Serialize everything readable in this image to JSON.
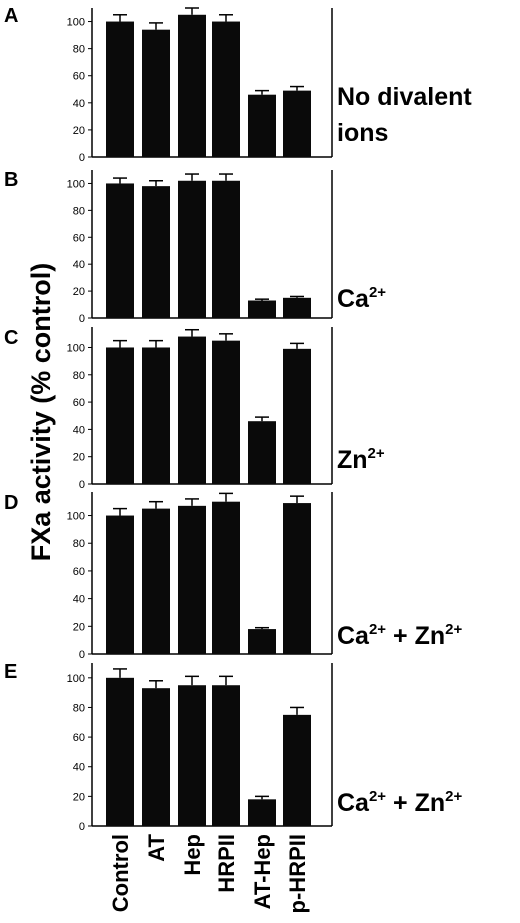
{
  "ylabel": "FXa activity (% control)",
  "categories": [
    "Control",
    "AT",
    "Hep",
    "HRPII",
    "AT-Hep",
    "p-HRPII"
  ],
  "chart_data": [
    {
      "type": "bar",
      "panel": "A",
      "condition": "No divalent ions",
      "condition_parts": [
        {
          "t": "No divalent"
        },
        {
          "t": "ions"
        }
      ],
      "categories": [
        "Control",
        "AT",
        "Hep",
        "HRPII",
        "AT-Hep",
        "p-HRPII"
      ],
      "values": [
        100,
        94,
        105,
        100,
        46,
        49
      ],
      "errors": [
        5,
        5,
        5,
        5,
        3,
        3
      ],
      "ylim": [
        0,
        110
      ],
      "yticks": [
        0,
        20,
        40,
        60,
        80,
        100
      ],
      "ylabel": "FXa activity (% control)"
    },
    {
      "type": "bar",
      "panel": "B",
      "condition": "Ca2+",
      "condition_parts": [
        {
          "t": "Ca"
        },
        {
          "sup": "2+"
        }
      ],
      "categories": [
        "Control",
        "AT",
        "Hep",
        "HRPII",
        "AT-Hep",
        "p-HRPII"
      ],
      "values": [
        100,
        98,
        102,
        102,
        13,
        15
      ],
      "errors": [
        4,
        4,
        5,
        5,
        1,
        1
      ],
      "ylim": [
        0,
        110
      ],
      "yticks": [
        0,
        20,
        40,
        60,
        80,
        100
      ],
      "ylabel": "FXa activity (% control)"
    },
    {
      "type": "bar",
      "panel": "C",
      "condition": "Zn2+",
      "condition_parts": [
        {
          "t": "Zn"
        },
        {
          "sup": "2+"
        }
      ],
      "categories": [
        "Control",
        "AT",
        "Hep",
        "HRPII",
        "AT-Hep",
        "p-HRPII"
      ],
      "values": [
        100,
        100,
        108,
        105,
        46,
        99
      ],
      "errors": [
        5,
        5,
        5,
        5,
        3,
        4
      ],
      "ylim": [
        0,
        115
      ],
      "yticks": [
        0,
        20,
        40,
        60,
        80,
        100
      ],
      "ylabel": "FXa activity (% control)"
    },
    {
      "type": "bar",
      "panel": "D",
      "condition": "Ca2+ + Zn2+",
      "condition_parts": [
        {
          "t": "Ca"
        },
        {
          "sup": "2+"
        },
        {
          "t": " + Zn"
        },
        {
          "sup": "2+"
        }
      ],
      "categories": [
        "Control",
        "AT",
        "Hep",
        "HRPII",
        "AT-Hep",
        "p-HRPII"
      ],
      "values": [
        100,
        105,
        107,
        110,
        18,
        109
      ],
      "errors": [
        5,
        5,
        5,
        6,
        1,
        5
      ],
      "ylim": [
        0,
        117
      ],
      "yticks": [
        0,
        20,
        40,
        60,
        80,
        100
      ],
      "ylabel": "FXa activity (% control)"
    },
    {
      "type": "bar",
      "panel": "E",
      "condition": "Ca2+ + Zn2+",
      "condition_parts": [
        {
          "t": "Ca"
        },
        {
          "sup": "2+"
        },
        {
          "t": " + Zn"
        },
        {
          "sup": "2+"
        }
      ],
      "categories": [
        "Control",
        "AT",
        "Hep",
        "HRPII",
        "AT-Hep",
        "p-HRPII"
      ],
      "values": [
        100,
        93,
        95,
        95,
        18,
        75
      ],
      "errors": [
        6,
        5,
        6,
        6,
        2,
        5
      ],
      "ylim": [
        0,
        110
      ],
      "yticks": [
        0,
        20,
        40,
        60,
        80,
        100
      ],
      "ylabel": "FXa activity (% control)"
    }
  ]
}
